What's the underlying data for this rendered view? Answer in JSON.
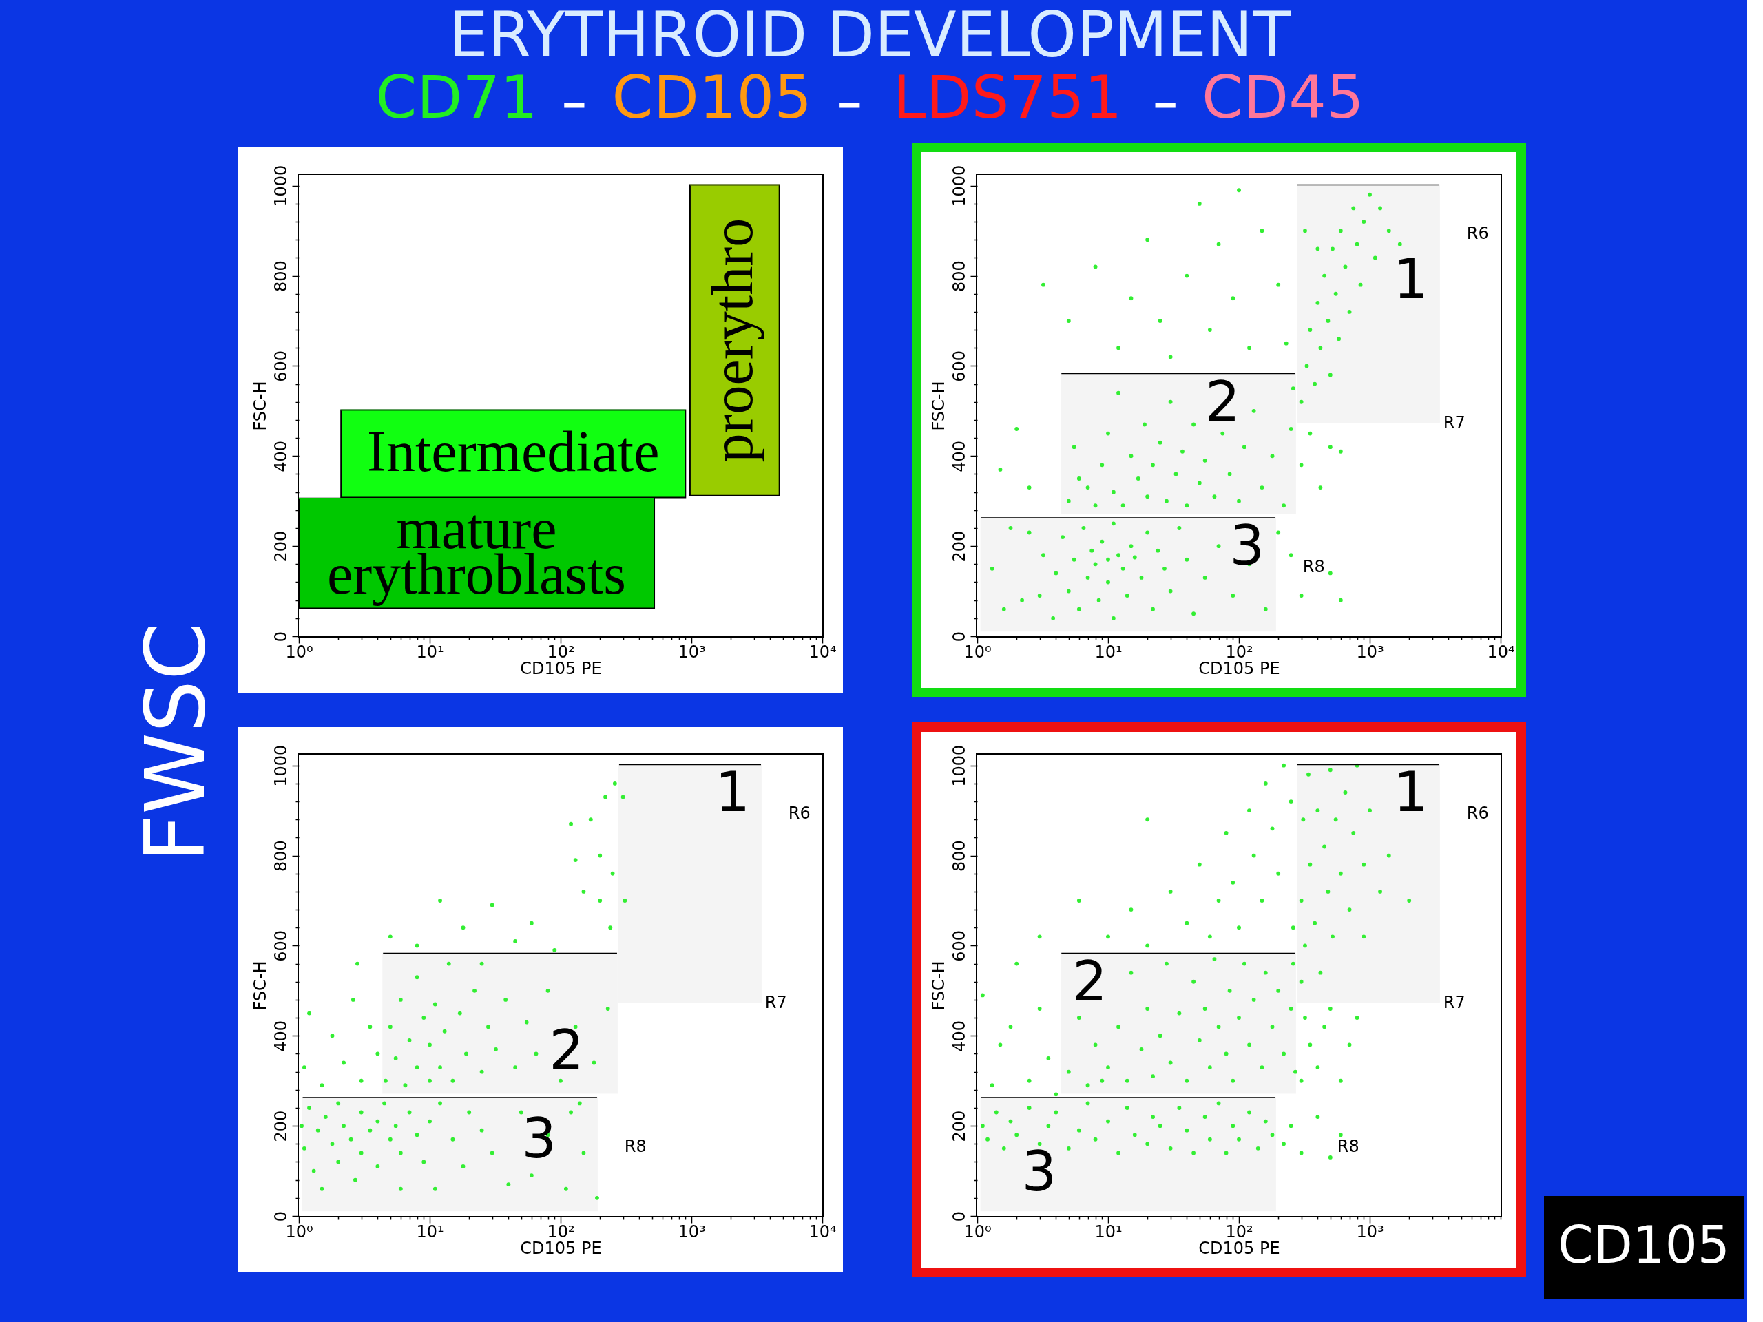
{
  "chart_data": [
    {
      "type": "other",
      "title": "ERYTHROID DEVELOPMENT",
      "categories": [
        "CD71",
        "CD105",
        "LDS751",
        "CD45"
      ],
      "colors": [
        "#22ee22",
        "#ff9911",
        "#ff1a1a",
        "#ff7799"
      ],
      "annotations": [
        "FWSC",
        "CD105"
      ]
    },
    {
      "type": "line",
      "xlabel": "CD105 PE",
      "ylabel": "FSC-H",
      "log": "x",
      "xlim": [
        1,
        10000
      ],
      "ylim": [
        0,
        1024
      ],
      "xticks": [
        {
          "value": 1,
          "label": "10⁰"
        },
        {
          "value": 2,
          "label": null
        },
        {
          "value": 3,
          "label": null
        },
        {
          "value": 4,
          "label": null
        },
        {
          "value": 5,
          "label": null
        },
        {
          "value": 6,
          "label": null
        },
        {
          "value": 7,
          "label": null
        },
        {
          "value": 8,
          "label": null
        },
        {
          "value": 9,
          "label": null
        },
        {
          "value": 10,
          "label": "10¹"
        },
        {
          "value": 20,
          "label": null
        },
        {
          "value": 30,
          "label": null
        },
        {
          "value": 40,
          "label": null
        },
        {
          "value": 50,
          "label": null
        },
        {
          "value": 60,
          "label": null
        },
        {
          "value": 70,
          "label": null
        },
        {
          "value": 80,
          "label": null
        },
        {
          "value": 90,
          "label": null
        },
        {
          "value": 100,
          "label": "10²"
        },
        {
          "value": 200,
          "label": null
        },
        {
          "value": 300,
          "label": null
        },
        {
          "value": 400,
          "label": null
        },
        {
          "value": 500,
          "label": null
        },
        {
          "value": 600,
          "label": null
        },
        {
          "value": 700,
          "label": null
        },
        {
          "value": 800,
          "label": null
        },
        {
          "value": 900,
          "label": null
        },
        {
          "value": 1000,
          "label": "10³"
        },
        {
          "value": 2000,
          "label": null
        },
        {
          "value": 3000,
          "label": null
        },
        {
          "value": 4000,
          "label": null
        },
        {
          "value": 5000,
          "label": null
        },
        {
          "value": 6000,
          "label": null
        },
        {
          "value": 7000,
          "label": null
        },
        {
          "value": 8000,
          "label": null
        },
        {
          "value": 9000,
          "label": null
        },
        {
          "value": 10000,
          "label": "10⁴"
        }
      ],
      "yticks": [
        0,
        {
          "value": 40,
          "label": null
        },
        {
          "value": 80,
          "label": null
        },
        {
          "value": 120,
          "label": null
        },
        {
          "value": 160,
          "label": null
        },
        200,
        {
          "value": 240,
          "label": null
        },
        {
          "value": 280,
          "label": null
        },
        {
          "value": 320,
          "label": null
        },
        {
          "value": 360,
          "label": null
        },
        400,
        {
          "value": 440,
          "label": null
        },
        {
          "value": 480,
          "label": null
        },
        {
          "value": 520,
          "label": null
        },
        {
          "value": 560,
          "label": null
        },
        600,
        {
          "value": 640,
          "label": null
        },
        {
          "value": 680,
          "label": null
        },
        {
          "value": 720,
          "label": null
        },
        {
          "value": 760,
          "label": null
        },
        800,
        {
          "value": 840,
          "label": null
        },
        {
          "value": 880,
          "label": null
        },
        {
          "value": 920,
          "label": null
        },
        {
          "value": 960,
          "label": null
        },
        1000
      ],
      "series": [
        {
          "name": "mature erythroblasts",
          "color": "#00c800",
          "x": [
            1,
            520
          ],
          "values": [
            306,
            306
          ],
          "upper": [
            306,
            306
          ],
          "lower": [
            62,
            62
          ]
        },
        {
          "name": "Intermediate",
          "color": "#11ff11",
          "x": [
            2.1,
            900
          ],
          "values": [
            502,
            502
          ],
          "upper": [
            502,
            502
          ],
          "lower": [
            308,
            308
          ]
        },
        {
          "name": "proerythro",
          "color": "#99cc00",
          "x": [
            975,
            4700
          ],
          "values": [
            1002,
            1002
          ],
          "upper": [
            1002,
            1002
          ],
          "lower": [
            312,
            312
          ]
        }
      ]
    },
    {
      "type": "scatter",
      "xlabel": "CD105 PE",
      "ylabel": "FSC-H",
      "log": "x",
      "xlim": [
        1,
        10000
      ],
      "ylim": [
        0,
        1024
      ],
      "xticks": [
        {
          "value": 1,
          "label": "10⁰"
        },
        {
          "value": 2,
          "label": null
        },
        {
          "value": 3,
          "label": null
        },
        {
          "value": 4,
          "label": null
        },
        {
          "value": 5,
          "label": null
        },
        {
          "value": 6,
          "label": null
        },
        {
          "value": 7,
          "label": null
        },
        {
          "value": 8,
          "label": null
        },
        {
          "value": 9,
          "label": null
        },
        {
          "value": 10,
          "label": "10¹"
        },
        {
          "value": 20,
          "label": null
        },
        {
          "value": 30,
          "label": null
        },
        {
          "value": 40,
          "label": null
        },
        {
          "value": 50,
          "label": null
        },
        {
          "value": 60,
          "label": null
        },
        {
          "value": 70,
          "label": null
        },
        {
          "value": 80,
          "label": null
        },
        {
          "value": 90,
          "label": null
        },
        {
          "value": 100,
          "label": "10²"
        },
        {
          "value": 200,
          "label": null
        },
        {
          "value": 300,
          "label": null
        },
        {
          "value": 400,
          "label": null
        },
        {
          "value": 500,
          "label": null
        },
        {
          "value": 600,
          "label": null
        },
        {
          "value": 700,
          "label": null
        },
        {
          "value": 800,
          "label": null
        },
        {
          "value": 900,
          "label": null
        },
        {
          "value": 1000,
          "label": "10³"
        },
        {
          "value": 2000,
          "label": null
        },
        {
          "value": 3000,
          "label": null
        },
        {
          "value": 4000,
          "label": null
        },
        {
          "value": 5000,
          "label": null
        },
        {
          "value": 6000,
          "label": null
        },
        {
          "value": 7000,
          "label": null
        },
        {
          "value": 8000,
          "label": null
        },
        {
          "value": 9000,
          "label": null
        },
        {
          "value": 10000,
          "label": "10⁴"
        }
      ],
      "yticks": [
        0,
        {
          "value": 40,
          "label": null
        },
        {
          "value": 80,
          "label": null
        },
        {
          "value": 120,
          "label": null
        },
        {
          "value": 160,
          "label": null
        },
        200,
        {
          "value": 240,
          "label": null
        },
        {
          "value": 280,
          "label": null
        },
        {
          "value": 320,
          "label": null
        },
        {
          "value": 360,
          "label": null
        },
        400,
        {
          "value": 440,
          "label": null
        },
        {
          "value": 480,
          "label": null
        },
        {
          "value": 520,
          "label": null
        },
        {
          "value": 560,
          "label": null
        },
        600,
        {
          "value": 640,
          "label": null
        },
        {
          "value": 680,
          "label": null
        },
        {
          "value": 720,
          "label": null
        },
        {
          "value": 760,
          "label": null
        },
        800,
        {
          "value": 840,
          "label": null
        },
        {
          "value": 880,
          "label": null
        },
        {
          "value": 920,
          "label": null
        },
        {
          "value": 960,
          "label": null
        },
        1000
      ],
      "series": [
        {
          "type": "scatter",
          "marker": "circle",
          "color": "#33ee33",
          "x": [
            1.3,
            1.6,
            1.8,
            2.2,
            2.5,
            3,
            3.2,
            3.8,
            4,
            4.5,
            5,
            5.5,
            6,
            6.5,
            7,
            7.5,
            8,
            8.5,
            9,
            10,
            10,
            11,
            11,
            12,
            13,
            14,
            15,
            16,
            18,
            20,
            22,
            24,
            27,
            30,
            35,
            40,
            45,
            55,
            70,
            90,
            120,
            160,
            200,
            250,
            300,
            500,
            600,
            5,
            5.5,
            6,
            7,
            8,
            9,
            10,
            11,
            12,
            13,
            15,
            17,
            19,
            20,
            22,
            25,
            28,
            30,
            33,
            37,
            40,
            45,
            50,
            55,
            65,
            75,
            85,
            100,
            110,
            130,
            150,
            180,
            220,
            250,
            260,
            300,
            350,
            420,
            500,
            600,
            300,
            330,
            350,
            380,
            400,
            420,
            450,
            480,
            500,
            520,
            550,
            580,
            600,
            650,
            700,
            750,
            800,
            850,
            900,
            1000,
            1100,
            1200,
            1400,
            1700,
            400,
            320,
            3.2,
            5,
            8,
            12,
            15,
            20,
            25,
            30,
            40,
            50,
            60,
            70,
            90,
            100,
            120,
            150,
            200,
            230,
            1.5,
            2,
            2.5
          ],
          "values": [
            150,
            60,
            240,
            80,
            230,
            90,
            180,
            40,
            140,
            220,
            100,
            170,
            60,
            240,
            130,
            190,
            160,
            80,
            210,
            170,
            120,
            40,
            250,
            180,
            150,
            90,
            200,
            175,
            130,
            230,
            60,
            190,
            150,
            100,
            240,
            170,
            50,
            130,
            200,
            90,
            160,
            60,
            230,
            180,
            90,
            140,
            80,
            300,
            420,
            350,
            330,
            290,
            380,
            450,
            320,
            540,
            290,
            400,
            350,
            470,
            310,
            380,
            430,
            300,
            520,
            360,
            410,
            290,
            470,
            340,
            390,
            310,
            450,
            360,
            300,
            420,
            500,
            330,
            400,
            290,
            460,
            550,
            380,
            450,
            330,
            420,
            410,
            520,
            600,
            680,
            560,
            740,
            640,
            800,
            700,
            580,
            860,
            760,
            660,
            900,
            820,
            720,
            950,
            870,
            780,
            920,
            980,
            840,
            950,
            900,
            870,
            860,
            900,
            780,
            700,
            820,
            640,
            750,
            880,
            700,
            620,
            800,
            960,
            680,
            870,
            750,
            990,
            640,
            900,
            780,
            650,
            370,
            460,
            330
          ]
        },
        {
          "type": "line",
          "name": "R6",
          "color": "#000000",
          "x": [
            280,
            3400
          ],
          "values": [
            1002,
            1002
          ],
          "upper": [
            1002,
            1002
          ],
          "lower": [
            475,
            475
          ]
        },
        {
          "type": "line",
          "name": "R7",
          "color": "#000000",
          "x": [
            4.4,
            270
          ],
          "values": [
            583,
            583
          ],
          "upper": [
            583,
            583
          ],
          "lower": [
            273,
            273
          ]
        },
        {
          "type": "line",
          "name": "R8",
          "color": "#000000",
          "x": [
            1.07,
            190
          ],
          "values": [
            263,
            263
          ],
          "upper": [
            263,
            263
          ],
          "lower": [
            12,
            12
          ]
        }
      ],
      "annotations": [
        "1",
        "2",
        "3"
      ]
    },
    {
      "type": "scatter",
      "xlabel": "CD105 PE",
      "ylabel": "FSC-H",
      "log": "x",
      "xlim": [
        1,
        10000
      ],
      "ylim": [
        0,
        1024
      ],
      "xticks": [
        {
          "value": 1,
          "label": "10⁰"
        },
        {
          "value": 2,
          "label": null
        },
        {
          "value": 3,
          "label": null
        },
        {
          "value": 4,
          "label": null
        },
        {
          "value": 5,
          "label": null
        },
        {
          "value": 6,
          "label": null
        },
        {
          "value": 7,
          "label": null
        },
        {
          "value": 8,
          "label": null
        },
        {
          "value": 9,
          "label": null
        },
        {
          "value": 10,
          "label": "10¹"
        },
        {
          "value": 20,
          "label": null
        },
        {
          "value": 30,
          "label": null
        },
        {
          "value": 40,
          "label": null
        },
        {
          "value": 50,
          "label": null
        },
        {
          "value": 60,
          "label": null
        },
        {
          "value": 70,
          "label": null
        },
        {
          "value": 80,
          "label": null
        },
        {
          "value": 90,
          "label": null
        },
        {
          "value": 100,
          "label": "10²"
        },
        {
          "value": 200,
          "label": null
        },
        {
          "value": 300,
          "label": null
        },
        {
          "value": 400,
          "label": null
        },
        {
          "value": 500,
          "label": null
        },
        {
          "value": 600,
          "label": null
        },
        {
          "value": 700,
          "label": null
        },
        {
          "value": 800,
          "label": null
        },
        {
          "value": 900,
          "label": null
        },
        {
          "value": 1000,
          "label": "10³"
        },
        {
          "value": 2000,
          "label": null
        },
        {
          "value": 3000,
          "label": null
        },
        {
          "value": 4000,
          "label": null
        },
        {
          "value": 5000,
          "label": null
        },
        {
          "value": 6000,
          "label": null
        },
        {
          "value": 7000,
          "label": null
        },
        {
          "value": 8000,
          "label": null
        },
        {
          "value": 9000,
          "label": null
        },
        {
          "value": 10000,
          "label": "10⁴"
        }
      ],
      "yticks": [
        0,
        {
          "value": 40,
          "label": null
        },
        {
          "value": 80,
          "label": null
        },
        {
          "value": 120,
          "label": null
        },
        {
          "value": 160,
          "label": null
        },
        200,
        {
          "value": 240,
          "label": null
        },
        {
          "value": 280,
          "label": null
        },
        {
          "value": 320,
          "label": null
        },
        {
          "value": 360,
          "label": null
        },
        400,
        {
          "value": 440,
          "label": null
        },
        {
          "value": 480,
          "label": null
        },
        {
          "value": 520,
          "label": null
        },
        {
          "value": 560,
          "label": null
        },
        600,
        {
          "value": 640,
          "label": null
        },
        {
          "value": 680,
          "label": null
        },
        {
          "value": 720,
          "label": null
        },
        {
          "value": 760,
          "label": null
        },
        800,
        {
          "value": 840,
          "label": null
        },
        {
          "value": 880,
          "label": null
        },
        {
          "value": 920,
          "label": null
        },
        {
          "value": 960,
          "label": null
        },
        1000
      ],
      "series": [
        {
          "type": "scatter",
          "marker": "circle",
          "color": "#33ee33",
          "x": [
            1.05,
            1.1,
            1.2,
            1.3,
            1.4,
            1.5,
            1.6,
            1.8,
            2,
            2,
            2.2,
            2.5,
            2.7,
            3,
            3,
            3.5,
            4,
            4,
            4.5,
            5,
            5.5,
            6,
            6,
            7,
            8,
            9,
            10,
            11,
            12,
            15,
            18,
            20,
            25,
            30,
            40,
            50,
            60,
            80,
            110,
            150,
            190,
            1.1,
            1.2,
            1.5,
            1.8,
            2.2,
            2.6,
            3,
            3.5,
            4,
            4.6,
            5,
            5.5,
            6,
            6.5,
            7,
            8,
            8,
            9,
            10,
            10,
            11,
            12,
            13,
            14,
            15,
            17,
            19,
            22,
            25,
            28,
            32,
            38,
            45,
            55,
            65,
            80,
            100,
            130,
            180,
            230,
            120,
            140,
            2.8,
            5,
            8,
            12,
            18,
            25,
            30,
            45,
            60,
            90,
            120,
            150,
            170,
            200,
            220,
            240,
            250,
            260,
            130,
            200,
            300,
            310
          ],
          "values": [
            200,
            150,
            240,
            100,
            190,
            60,
            220,
            160,
            250,
            120,
            200,
            170,
            80,
            230,
            140,
            190,
            210,
            110,
            250,
            170,
            200,
            140,
            60,
            230,
            180,
            120,
            210,
            60,
            250,
            170,
            110,
            230,
            190,
            140,
            70,
            230,
            90,
            180,
            60,
            140,
            40,
            330,
            450,
            290,
            400,
            340,
            480,
            300,
            420,
            360,
            300,
            420,
            350,
            480,
            290,
            390,
            330,
            530,
            440,
            300,
            380,
            470,
            330,
            410,
            560,
            300,
            450,
            360,
            500,
            320,
            420,
            370,
            480,
            330,
            430,
            360,
            500,
            300,
            420,
            340,
            460,
            230,
            250,
            560,
            620,
            600,
            700,
            640,
            560,
            690,
            610,
            650,
            590,
            870,
            720,
            880,
            800,
            930,
            640,
            760,
            960,
            790,
            700,
            930,
            700
          ]
        },
        {
          "type": "line",
          "name": "R6",
          "color": "#000000",
          "x": [
            280,
            3400
          ],
          "values": [
            1002,
            1002
          ],
          "upper": [
            1002,
            1002
          ],
          "lower": [
            475,
            475
          ]
        },
        {
          "type": "line",
          "name": "R7",
          "color": "#000000",
          "x": [
            4.4,
            270
          ],
          "values": [
            583,
            583
          ],
          "upper": [
            583,
            583
          ],
          "lower": [
            273,
            273
          ]
        },
        {
          "type": "line",
          "name": "R8",
          "color": "#000000",
          "x": [
            1.07,
            190
          ],
          "values": [
            263,
            263
          ],
          "upper": [
            263,
            263
          ],
          "lower": [
            12,
            12
          ]
        }
      ],
      "annotations": [
        "1",
        "2",
        "3"
      ]
    },
    {
      "type": "scatter",
      "xlabel": "CD105 PE",
      "ylabel": "FSC-H",
      "log": "x",
      "xlim": [
        1,
        10000
      ],
      "ylim": [
        0,
        1024
      ],
      "xticks": [
        {
          "value": 1,
          "label": "10⁰"
        },
        {
          "value": 2,
          "label": null
        },
        {
          "value": 3,
          "label": null
        },
        {
          "value": 4,
          "label": null
        },
        {
          "value": 5,
          "label": null
        },
        {
          "value": 6,
          "label": null
        },
        {
          "value": 7,
          "label": null
        },
        {
          "value": 8,
          "label": null
        },
        {
          "value": 9,
          "label": null
        },
        {
          "value": 10,
          "label": "10¹"
        },
        {
          "value": 20,
          "label": null
        },
        {
          "value": 30,
          "label": null
        },
        {
          "value": 40,
          "label": null
        },
        {
          "value": 50,
          "label": null
        },
        {
          "value": 60,
          "label": null
        },
        {
          "value": 70,
          "label": null
        },
        {
          "value": 80,
          "label": null
        },
        {
          "value": 90,
          "label": null
        },
        {
          "value": 100,
          "label": "10²"
        },
        {
          "value": 200,
          "label": null
        },
        {
          "value": 300,
          "label": null
        },
        {
          "value": 400,
          "label": null
        },
        {
          "value": 500,
          "label": null
        },
        {
          "value": 600,
          "label": null
        },
        {
          "value": 700,
          "label": null
        },
        {
          "value": 800,
          "label": null
        },
        {
          "value": 900,
          "label": null
        },
        {
          "value": 1000,
          "label": "10³"
        },
        {
          "value": 2000,
          "label": null
        },
        {
          "value": 3000,
          "label": null
        },
        {
          "value": 4000,
          "label": null
        },
        {
          "value": 5000,
          "label": null
        },
        {
          "value": 6000,
          "label": null
        },
        {
          "value": 7000,
          "label": null
        },
        {
          "value": 8000,
          "label": null
        },
        {
          "value": 9000,
          "label": null
        },
        {
          "value": 10000,
          "label": null
        }
      ],
      "yticks": [
        0,
        {
          "value": 40,
          "label": null
        },
        {
          "value": 80,
          "label": null
        },
        {
          "value": 120,
          "label": null
        },
        {
          "value": 160,
          "label": null
        },
        200,
        {
          "value": 240,
          "label": null
        },
        {
          "value": 280,
          "label": null
        },
        {
          "value": 320,
          "label": null
        },
        {
          "value": 360,
          "label": null
        },
        400,
        {
          "value": 440,
          "label": null
        },
        {
          "value": 480,
          "label": null
        },
        {
          "value": 520,
          "label": null
        },
        {
          "value": 560,
          "label": null
        },
        600,
        {
          "value": 640,
          "label": null
        },
        {
          "value": 680,
          "label": null
        },
        {
          "value": 720,
          "label": null
        },
        {
          "value": 760,
          "label": null
        },
        800,
        {
          "value": 840,
          "label": null
        },
        {
          "value": 880,
          "label": null
        },
        {
          "value": 920,
          "label": null
        },
        {
          "value": 960,
          "label": null
        },
        1000
      ],
      "series": [
        {
          "type": "scatter",
          "marker": "circle",
          "color": "#33ee33",
          "x": [
            1.1,
            1.2,
            1.4,
            1.6,
            1.8,
            2,
            2.5,
            3,
            3.5,
            4,
            5,
            6,
            7,
            8,
            10,
            12,
            14,
            16,
            20,
            22,
            25,
            30,
            35,
            40,
            45,
            55,
            60,
            70,
            80,
            90,
            100,
            120,
            140,
            160,
            180,
            220,
            250,
            300,
            400,
            500,
            600,
            1.1,
            1.5,
            2,
            2.5,
            3,
            3.5,
            1.3,
            1.8,
            4,
            5,
            6,
            7,
            8,
            9,
            10,
            12,
            14,
            15,
            18,
            20,
            22,
            25,
            28,
            30,
            35,
            40,
            45,
            50,
            55,
            60,
            65,
            70,
            80,
            85,
            90,
            100,
            110,
            120,
            130,
            150,
            160,
            180,
            200,
            220,
            250,
            260,
            270,
            10,
            15,
            20,
            30,
            40,
            50,
            60,
            70,
            80,
            90,
            100,
            120,
            130,
            150,
            160,
            180,
            200,
            220,
            250,
            260,
            3,
            6,
            20,
            300,
            300,
            310,
            320,
            340,
            350,
            380,
            400,
            420,
            450,
            480,
            500,
            520,
            550,
            600,
            650,
            700,
            750,
            800,
            900,
            1000,
            1200,
            1400,
            2000,
            900,
            300,
            320,
            350,
            400,
            450,
            500,
            600,
            700,
            800
          ],
          "values": [
            200,
            170,
            230,
            150,
            210,
            180,
            240,
            160,
            200,
            230,
            150,
            190,
            250,
            170,
            210,
            140,
            240,
            180,
            160,
            220,
            200,
            150,
            240,
            190,
            140,
            220,
            170,
            250,
            140,
            200,
            170,
            230,
            150,
            210,
            180,
            160,
            200,
            140,
            220,
            130,
            180,
            490,
            380,
            560,
            300,
            460,
            350,
            290,
            420,
            270,
            320,
            440,
            290,
            380,
            300,
            330,
            420,
            300,
            540,
            370,
            460,
            310,
            400,
            560,
            340,
            450,
            300,
            520,
            390,
            460,
            330,
            570,
            420,
            360,
            500,
            300,
            440,
            560,
            380,
            480,
            330,
            540,
            420,
            500,
            360,
            460,
            560,
            320,
            620,
            680,
            600,
            720,
            650,
            780,
            620,
            700,
            850,
            740,
            640,
            900,
            800,
            700,
            960,
            860,
            760,
            1000,
            920,
            640,
            620,
            700,
            880,
            520,
            700,
            880,
            600,
            980,
            780,
            650,
            900,
            540,
            820,
            720,
            990,
            620,
            880,
            760,
            940,
            680,
            850,
            1000,
            780,
            900,
            720,
            800,
            700,
            620,
            300,
            440,
            380,
            330,
            420,
            460,
            300,
            380,
            440
          ]
        },
        {
          "type": "line",
          "name": "R6",
          "color": "#000000",
          "x": [
            280,
            3400
          ],
          "values": [
            1002,
            1002
          ],
          "upper": [
            1002,
            1002
          ],
          "lower": [
            475,
            475
          ]
        },
        {
          "type": "line",
          "name": "R7",
          "color": "#000000",
          "x": [
            4.4,
            270
          ],
          "values": [
            583,
            583
          ],
          "upper": [
            583,
            583
          ],
          "lower": [
            273,
            273
          ]
        },
        {
          "type": "line",
          "name": "R8",
          "color": "#000000",
          "x": [
            1.07,
            190
          ],
          "values": [
            263,
            263
          ],
          "upper": [
            263,
            263
          ],
          "lower": [
            12,
            12
          ]
        }
      ],
      "annotations": [
        "1",
        "2",
        "3"
      ]
    }
  ]
}
